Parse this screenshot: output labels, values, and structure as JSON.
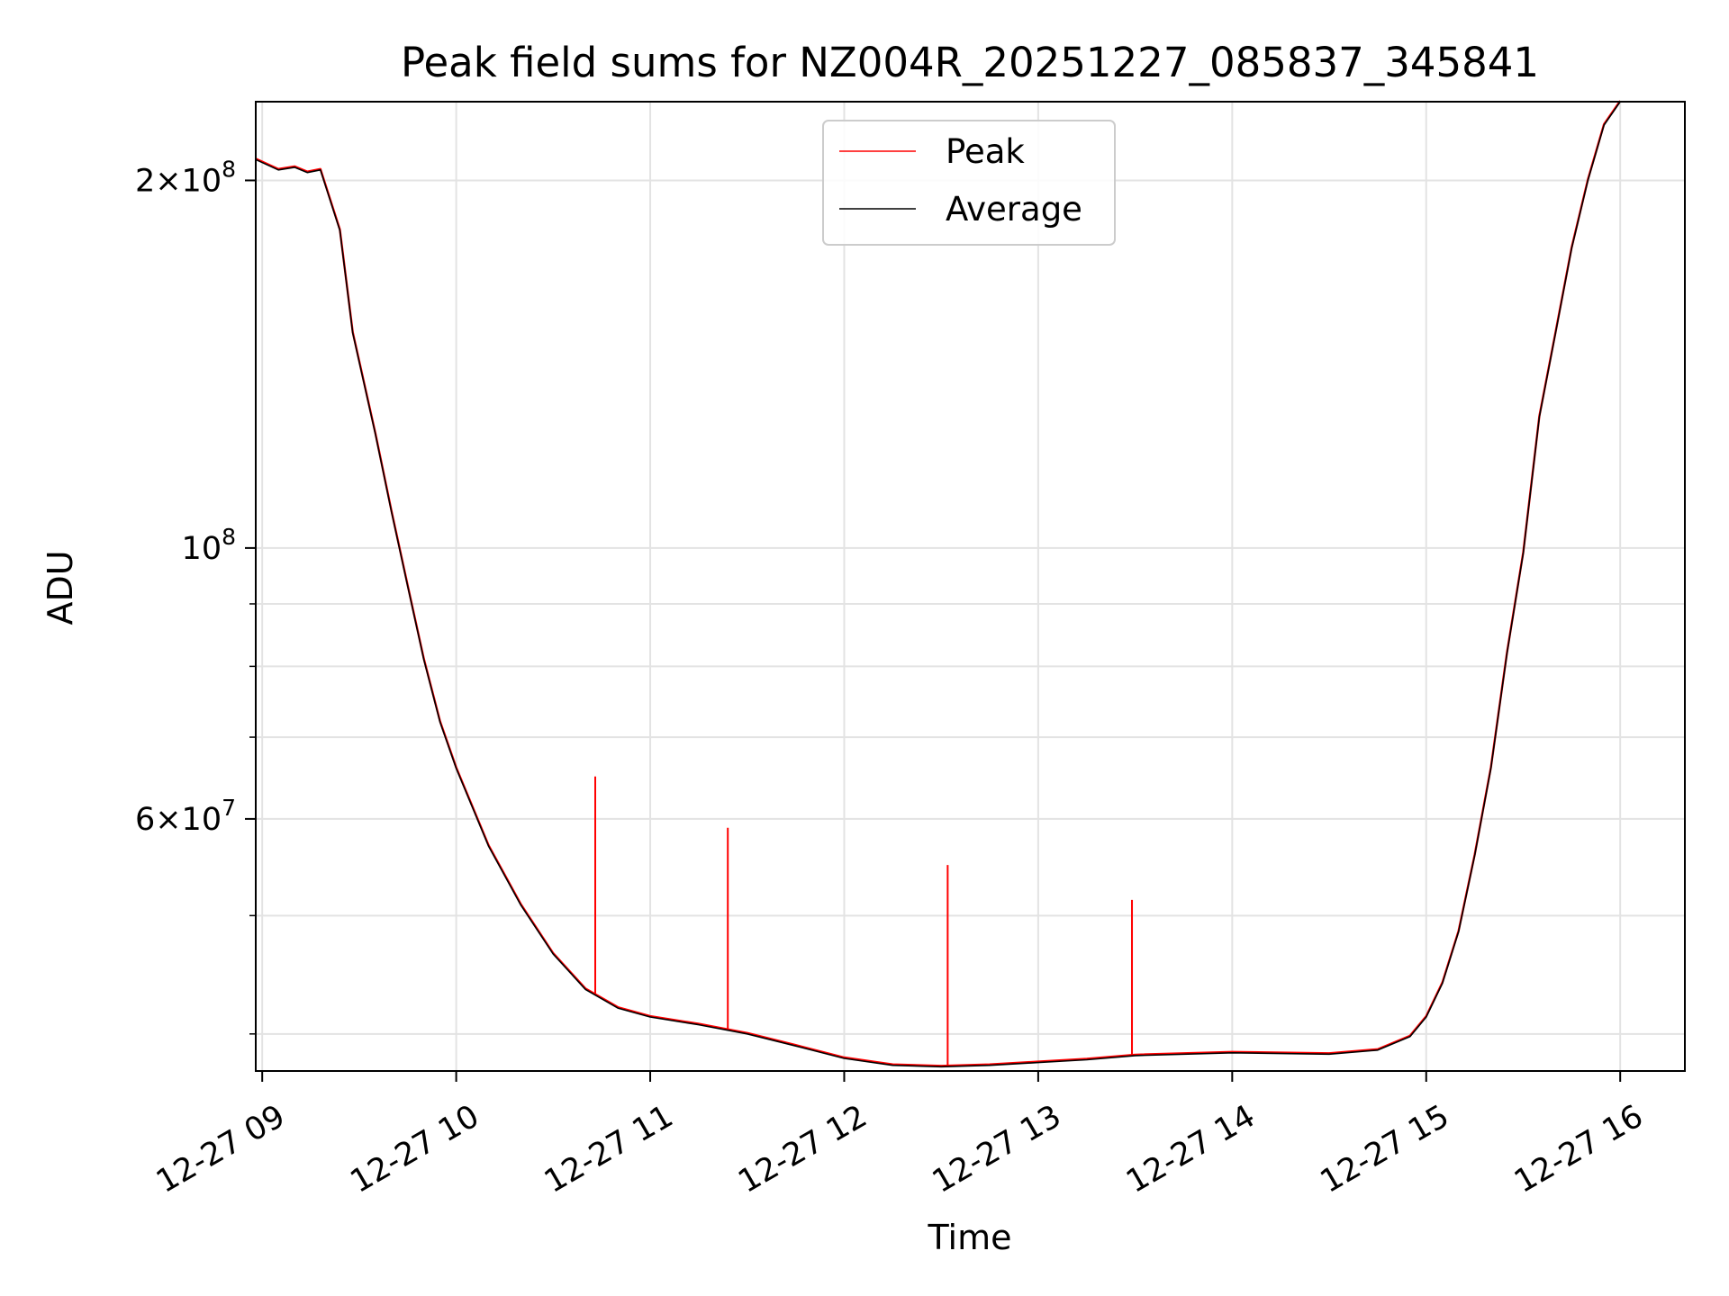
{
  "chart_data": {
    "type": "line",
    "title": "Peak field sums for NZ004R_20251227_085837_345841",
    "xlabel": "Time",
    "ylabel": "ADU",
    "y_scale": "log",
    "ylim": [
      37300000,
      232000000
    ],
    "xlim": [
      "2025-12-27 08:58",
      "2025-12-27 16:20"
    ],
    "x_ticks": [
      {
        "t": "2025-12-27 09:00",
        "label": "12-27 09"
      },
      {
        "t": "2025-12-27 10:00",
        "label": "12-27 10"
      },
      {
        "t": "2025-12-27 11:00",
        "label": "12-27 11"
      },
      {
        "t": "2025-12-27 12:00",
        "label": "12-27 12"
      },
      {
        "t": "2025-12-27 13:00",
        "label": "12-27 13"
      },
      {
        "t": "2025-12-27 14:00",
        "label": "12-27 14"
      },
      {
        "t": "2025-12-27 15:00",
        "label": "12-27 15"
      },
      {
        "t": "2025-12-27 16:00",
        "label": "12-27 16"
      }
    ],
    "y_ticks": [
      {
        "value": 200000000,
        "base": "2",
        "exp": "8",
        "times": true
      },
      {
        "value": 100000000,
        "base": "10",
        "exp": "8",
        "times": false
      },
      {
        "value": 60000000,
        "base": "6",
        "exp": "7",
        "times": true
      }
    ],
    "y_minor_ticks": [
      40000000,
      50000000,
      70000000,
      80000000,
      90000000
    ],
    "grid": true,
    "legend": {
      "position": "upper center",
      "entries": [
        {
          "name": "Peak",
          "color": "#ff0000"
        },
        {
          "name": "Average",
          "color": "#000000"
        }
      ]
    },
    "series": [
      {
        "name": "Average",
        "color": "#000000",
        "x": [
          "2025-12-27 08:58",
          "2025-12-27 09:05",
          "2025-12-27 09:10",
          "2025-12-27 09:14",
          "2025-12-27 09:18",
          "2025-12-27 09:24",
          "2025-12-27 09:28",
          "2025-12-27 09:35",
          "2025-12-27 09:40",
          "2025-12-27 09:45",
          "2025-12-27 09:50",
          "2025-12-27 09:55",
          "2025-12-27 10:00",
          "2025-12-27 10:10",
          "2025-12-27 10:20",
          "2025-12-27 10:30",
          "2025-12-27 10:40",
          "2025-12-27 10:50",
          "2025-12-27 11:00",
          "2025-12-27 11:15",
          "2025-12-27 11:30",
          "2025-12-27 11:45",
          "2025-12-27 12:00",
          "2025-12-27 12:15",
          "2025-12-27 12:30",
          "2025-12-27 12:45",
          "2025-12-27 13:00",
          "2025-12-27 13:15",
          "2025-12-27 13:30",
          "2025-12-27 14:00",
          "2025-12-27 14:30",
          "2025-12-27 14:45",
          "2025-12-27 14:55",
          "2025-12-27 15:00",
          "2025-12-27 15:05",
          "2025-12-27 15:10",
          "2025-12-27 15:15",
          "2025-12-27 15:20",
          "2025-12-27 15:25",
          "2025-12-27 15:30",
          "2025-12-27 15:35",
          "2025-12-27 15:40",
          "2025-12-27 15:45",
          "2025-12-27 15:50",
          "2025-12-27 15:55",
          "2025-12-27 16:00"
        ],
        "values": [
          208000000,
          204000000,
          205000000,
          203000000,
          204000000,
          182000000,
          150000000,
          124000000,
          107000000,
          93000000,
          81000000,
          72000000,
          66000000,
          57000000,
          51000000,
          46500000,
          43500000,
          42000000,
          41300000,
          40700000,
          40000000,
          39100000,
          38200000,
          37700000,
          37600000,
          37700000,
          37900000,
          38100000,
          38400000,
          38600000,
          38500000,
          38800000,
          39800000,
          41300000,
          44000000,
          48500000,
          56000000,
          66000000,
          82000000,
          99000000,
          128000000,
          150000000,
          176000000,
          200000000,
          222000000,
          232000000
        ]
      },
      {
        "name": "Peak",
        "color": "#ff0000",
        "spikes": [
          {
            "t": "2025-12-27 10:43",
            "value": 65000000
          },
          {
            "t": "2025-12-27 11:24",
            "value": 59000000
          },
          {
            "t": "2025-12-27 12:32",
            "value": 55000000
          },
          {
            "t": "2025-12-27 13:29",
            "value": 51500000
          }
        ]
      }
    ]
  }
}
